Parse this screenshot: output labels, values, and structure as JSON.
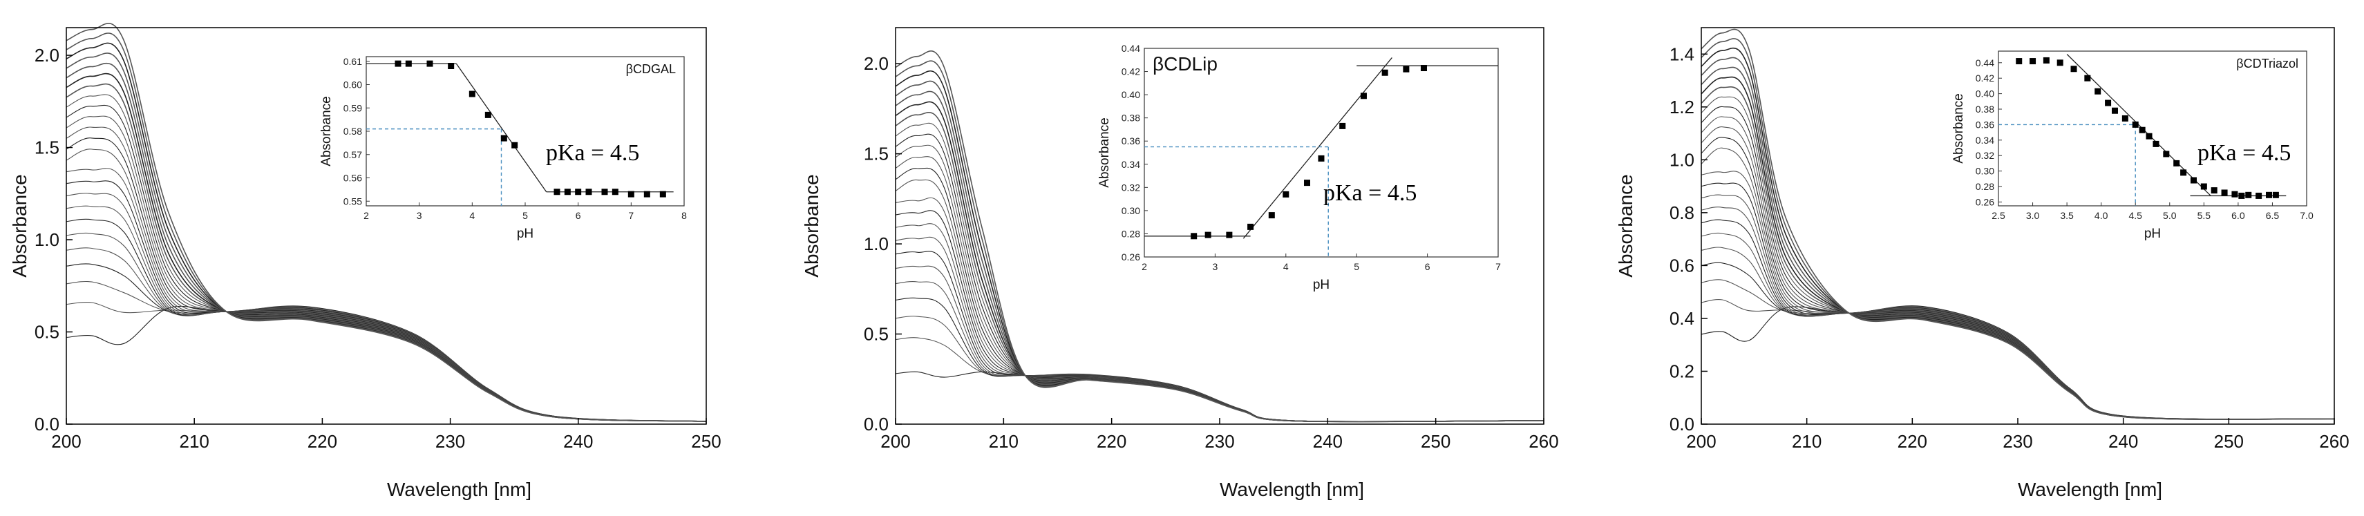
{
  "chart_data": [
    {
      "type": "line",
      "title": "",
      "xlabel": "Wavelength [nm]",
      "ylabel": "Absorbance",
      "xlim": [
        200,
        250
      ],
      "ylim": [
        0,
        2.15
      ],
      "xticks": [
        "200",
        "210",
        "220",
        "230",
        "240",
        "250"
      ],
      "yticks": [
        "0.0",
        "0.5",
        "1.0",
        "1.5",
        "2.0"
      ],
      "grid": false,
      "spectra": {
        "count": 24,
        "start_absorbance_range": [
          0.47,
          2.08
        ],
        "isosbestic_point": {
          "x": 212.5,
          "y": 0.61
        },
        "shoulder_absorbance": 0.6,
        "shoulder_wavelength": 219
      },
      "inset": {
        "type": "scatter",
        "title": "βCDGAL",
        "xlabel": "pH",
        "ylabel": "Absorbance",
        "xlim": [
          2,
          8
        ],
        "ylim": [
          0.548,
          0.612
        ],
        "xticks": [
          "2",
          "3",
          "4",
          "5",
          "6",
          "7",
          "8"
        ],
        "yticks": [
          "0.55",
          "0.56",
          "0.57",
          "0.58",
          "0.59",
          "0.60",
          "0.61"
        ],
        "points": [
          {
            "x": 2.6,
            "y": 0.609
          },
          {
            "x": 2.8,
            "y": 0.609
          },
          {
            "x": 3.2,
            "y": 0.609
          },
          {
            "x": 3.6,
            "y": 0.608
          },
          {
            "x": 4.0,
            "y": 0.596
          },
          {
            "x": 4.3,
            "y": 0.587
          },
          {
            "x": 4.6,
            "y": 0.577
          },
          {
            "x": 4.8,
            "y": 0.574
          },
          {
            "x": 5.6,
            "y": 0.554
          },
          {
            "x": 5.8,
            "y": 0.554
          },
          {
            "x": 6.0,
            "y": 0.554
          },
          {
            "x": 6.2,
            "y": 0.554
          },
          {
            "x": 6.5,
            "y": 0.554
          },
          {
            "x": 6.7,
            "y": 0.554
          },
          {
            "x": 7.0,
            "y": 0.553
          },
          {
            "x": 7.3,
            "y": 0.553
          },
          {
            "x": 7.6,
            "y": 0.553
          }
        ],
        "fit_lines": [
          {
            "x1": 2.0,
            "y1": 0.609,
            "x2": 3.7,
            "y2": 0.609
          },
          {
            "x1": 3.7,
            "y1": 0.609,
            "x2": 5.4,
            "y2": 0.554
          },
          {
            "x1": 5.4,
            "y1": 0.554,
            "x2": 7.8,
            "y2": 0.554
          }
        ],
        "pka_marker": {
          "x": 4.55,
          "y": 0.581
        },
        "annotation": "pKa = 4.5"
      }
    },
    {
      "type": "line",
      "title": "",
      "xlabel": "Wavelength [nm]",
      "ylabel": "Absorbance",
      "xlim": [
        200,
        260
      ],
      "ylim": [
        0,
        2.2
      ],
      "xticks": [
        "200",
        "210",
        "220",
        "230",
        "240",
        "250",
        "260"
      ],
      "yticks": [
        "0.0",
        "0.5",
        "1.0",
        "1.5",
        "2.0"
      ],
      "grid": false,
      "spectra": {
        "count": 24,
        "start_absorbance_range": [
          0.28,
          1.98
        ],
        "isosbestic_point": {
          "x": 212,
          "y": 0.27
        },
        "shoulder_absorbance": 0.26,
        "shoulder_wavelength": 218
      },
      "inset": {
        "type": "scatter",
        "title": "βCDLip",
        "xlabel": "pH",
        "ylabel": "Absorbance",
        "xlim": [
          2,
          7
        ],
        "ylim": [
          0.26,
          0.44
        ],
        "xticks": [
          "2",
          "3",
          "4",
          "5",
          "6",
          "7"
        ],
        "yticks": [
          "0.26",
          "0.28",
          "0.30",
          "0.32",
          "0.34",
          "0.36",
          "0.38",
          "0.40",
          "0.42",
          "0.44"
        ],
        "points": [
          {
            "x": 2.7,
            "y": 0.278
          },
          {
            "x": 2.9,
            "y": 0.279
          },
          {
            "x": 3.2,
            "y": 0.279
          },
          {
            "x": 3.5,
            "y": 0.286
          },
          {
            "x": 3.8,
            "y": 0.296
          },
          {
            "x": 4.0,
            "y": 0.314
          },
          {
            "x": 4.3,
            "y": 0.324
          },
          {
            "x": 4.5,
            "y": 0.345
          },
          {
            "x": 4.8,
            "y": 0.373
          },
          {
            "x": 5.1,
            "y": 0.399
          },
          {
            "x": 5.4,
            "y": 0.419
          },
          {
            "x": 5.7,
            "y": 0.422
          },
          {
            "x": 5.95,
            "y": 0.423
          }
        ],
        "fit_lines": [
          {
            "x1": 2.0,
            "y1": 0.278,
            "x2": 3.5,
            "y2": 0.278
          },
          {
            "x1": 3.4,
            "y1": 0.276,
            "x2": 5.5,
            "y2": 0.432
          },
          {
            "x1": 5.0,
            "y1": 0.425,
            "x2": 7.0,
            "y2": 0.425
          }
        ],
        "pka_marker": {
          "x": 4.6,
          "y": 0.355
        },
        "annotation": "pKa = 4.5"
      }
    },
    {
      "type": "line",
      "title": "",
      "xlabel": "Wavelength [nm]",
      "ylabel": "Absorbance",
      "xlim": [
        200,
        260
      ],
      "ylim": [
        0,
        1.5
      ],
      "xticks": [
        "200",
        "210",
        "220",
        "230",
        "240",
        "250",
        "260"
      ],
      "yticks": [
        "0.0",
        "0.2",
        "0.4",
        "0.6",
        "0.8",
        "1.0",
        "1.2",
        "1.4"
      ],
      "grid": false,
      "spectra": {
        "count": 24,
        "start_absorbance_range": [
          0.34,
          1.42
        ],
        "isosbestic_point": {
          "x": 214,
          "y": 0.42
        },
        "shoulder_absorbance": 0.42,
        "shoulder_wavelength": 221
      },
      "inset": {
        "type": "scatter",
        "title": "βCDTriazol",
        "xlabel": "pH",
        "ylabel": "Absorbance",
        "xlim": [
          2.5,
          7.0
        ],
        "ylim": [
          0.255,
          0.455
        ],
        "xticks": [
          "2.5",
          "3.0",
          "3.5",
          "4.0",
          "4.5",
          "5.0",
          "5.5",
          "6.0",
          "6.5",
          "7.0"
        ],
        "yticks": [
          "0.26",
          "0.28",
          "0.30",
          "0.32",
          "0.34",
          "0.36",
          "0.38",
          "0.40",
          "0.42",
          "0.44"
        ],
        "points": [
          {
            "x": 2.8,
            "y": 0.442
          },
          {
            "x": 3.0,
            "y": 0.442
          },
          {
            "x": 3.2,
            "y": 0.443
          },
          {
            "x": 3.4,
            "y": 0.44
          },
          {
            "x": 3.6,
            "y": 0.432
          },
          {
            "x": 3.8,
            "y": 0.42
          },
          {
            "x": 3.95,
            "y": 0.403
          },
          {
            "x": 4.1,
            "y": 0.388
          },
          {
            "x": 4.2,
            "y": 0.378
          },
          {
            "x": 4.35,
            "y": 0.368
          },
          {
            "x": 4.5,
            "y": 0.36
          },
          {
            "x": 4.6,
            "y": 0.353
          },
          {
            "x": 4.7,
            "y": 0.345
          },
          {
            "x": 4.8,
            "y": 0.335
          },
          {
            "x": 4.95,
            "y": 0.322
          },
          {
            "x": 5.1,
            "y": 0.31
          },
          {
            "x": 5.2,
            "y": 0.298
          },
          {
            "x": 5.35,
            "y": 0.288
          },
          {
            "x": 5.5,
            "y": 0.28
          },
          {
            "x": 5.65,
            "y": 0.275
          },
          {
            "x": 5.8,
            "y": 0.272
          },
          {
            "x": 5.95,
            "y": 0.27
          },
          {
            "x": 6.05,
            "y": 0.268
          },
          {
            "x": 6.15,
            "y": 0.269
          },
          {
            "x": 6.3,
            "y": 0.268
          },
          {
            "x": 6.45,
            "y": 0.269
          },
          {
            "x": 6.55,
            "y": 0.269
          }
        ],
        "fit_lines": [
          {
            "x1": 3.5,
            "y1": 0.451,
            "x2": 5.6,
            "y2": 0.268
          },
          {
            "x1": 5.3,
            "y1": 0.268,
            "x2": 6.7,
            "y2": 0.268
          }
        ],
        "pka_marker": {
          "x": 4.5,
          "y": 0.36
        },
        "annotation": "pKa = 4.5"
      }
    }
  ]
}
